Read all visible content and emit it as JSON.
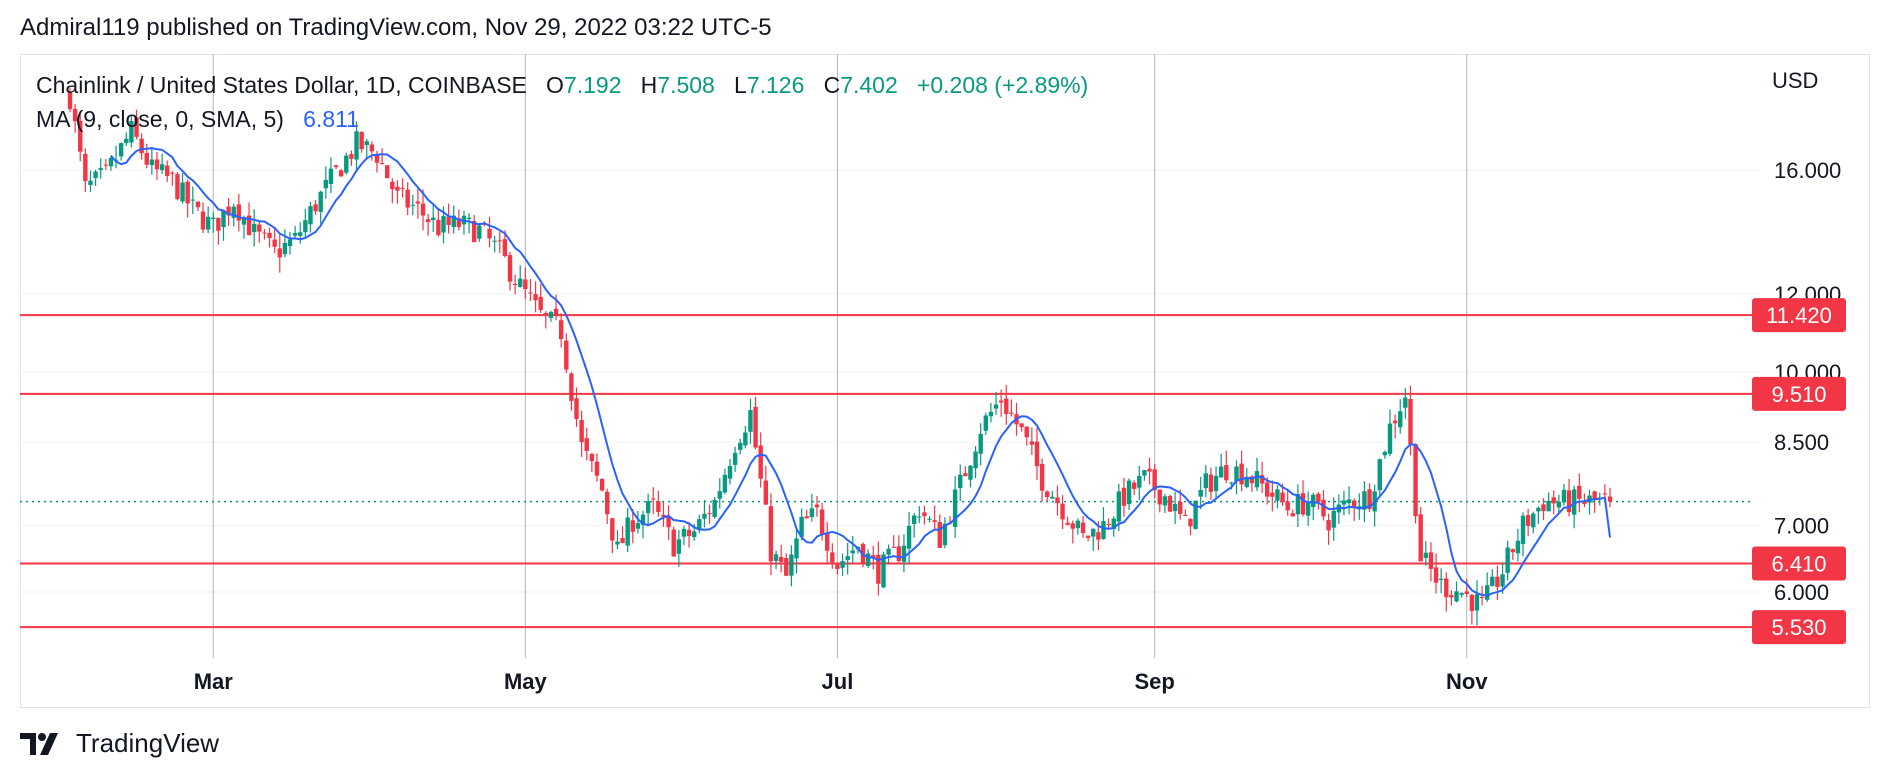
{
  "header": {
    "published": "Admiral119 published on TradingView.com, Nov 29, 2022 03:22 UTC-5"
  },
  "legend": {
    "symbol": "Chainlink / United States Dollar, 1D, COINBASE",
    "o_label": "O",
    "o_value": "7.192",
    "h_label": "H",
    "h_value": "7.508",
    "l_label": "L",
    "l_value": "7.126",
    "c_label": "C",
    "c_value": "7.402",
    "change": "+0.208 (+2.89%)",
    "ma_label": "MA (9, close, 0, SMA, 5)",
    "ma_value": "6.811"
  },
  "axis": {
    "currency": "USD"
  },
  "footer": {
    "brand": "TradingView"
  },
  "colors": {
    "up": "#089981",
    "down": "#f23645",
    "ma": "#2962ff",
    "level": "#f23645",
    "grid": "#f0f3fa",
    "month_line": "#b2b5be"
  },
  "icons": [
    "tradingview-logo-icon"
  ],
  "chart_data": {
    "type": "candlestick",
    "scale": "log",
    "y_ticks": [
      "16.000",
      "12.000",
      "10.000",
      "8.500",
      "7.000",
      "6.000"
    ],
    "y_tick_values": [
      16.0,
      12.0,
      10.0,
      8.5,
      7.0,
      6.0
    ],
    "x_ticks": [
      "Mar",
      "May",
      "Jul",
      "Sep",
      "Nov"
    ],
    "x_tick_days": [
      28,
      89,
      150,
      212,
      273
    ],
    "horizontal_levels": [
      {
        "label": "11.420",
        "value": 11.42
      },
      {
        "label": "9.510",
        "value": 9.51
      },
      {
        "label": "6.410",
        "value": 6.41
      },
      {
        "label": "5.530",
        "value": 5.53
      }
    ],
    "last_close": 7.402,
    "start_date": "2022-02-01",
    "end_date": "2022-11-29",
    "ma_period": 9,
    "ma_last": 6.811,
    "close_path": [
      [
        0,
        19.0
      ],
      [
        3,
        15.3
      ],
      [
        7,
        15.8
      ],
      [
        12,
        17.5
      ],
      [
        16,
        16.0
      ],
      [
        20,
        15.6
      ],
      [
        24,
        14.6
      ],
      [
        28,
        14.0
      ],
      [
        32,
        14.9
      ],
      [
        36,
        13.8
      ],
      [
        40,
        13.2
      ],
      [
        44,
        13.6
      ],
      [
        48,
        14.8
      ],
      [
        52,
        15.9
      ],
      [
        56,
        17.0
      ],
      [
        60,
        16.6
      ],
      [
        64,
        15.0
      ],
      [
        68,
        14.6
      ],
      [
        72,
        14.0
      ],
      [
        76,
        14.1
      ],
      [
        80,
        13.9
      ],
      [
        84,
        13.2
      ],
      [
        88,
        12.2
      ],
      [
        92,
        11.4
      ],
      [
        96,
        11.0
      ],
      [
        100,
        8.4
      ],
      [
        104,
        7.6
      ],
      [
        107,
        6.6
      ],
      [
        110,
        7.1
      ],
      [
        114,
        7.3
      ],
      [
        118,
        6.7
      ],
      [
        122,
        6.9
      ],
      [
        126,
        7.4
      ],
      [
        130,
        8.5
      ],
      [
        133,
        9.1
      ],
      [
        137,
        6.6
      ],
      [
        140,
        6.2
      ],
      [
        143,
        7.0
      ],
      [
        146,
        7.2
      ],
      [
        150,
        6.4
      ],
      [
        154,
        6.7
      ],
      [
        158,
        6.3
      ],
      [
        162,
        6.6
      ],
      [
        166,
        7.3
      ],
      [
        170,
        6.8
      ],
      [
        174,
        7.7
      ],
      [
        178,
        8.8
      ],
      [
        182,
        9.4
      ],
      [
        186,
        8.7
      ],
      [
        190,
        7.8
      ],
      [
        194,
        7.3
      ],
      [
        198,
        6.8
      ],
      [
        202,
        7.0
      ],
      [
        206,
        7.5
      ],
      [
        210,
        7.8
      ],
      [
        214,
        7.5
      ],
      [
        218,
        7.0
      ],
      [
        222,
        7.7
      ],
      [
        226,
        8.0
      ],
      [
        230,
        7.9
      ],
      [
        234,
        7.6
      ],
      [
        238,
        7.3
      ],
      [
        242,
        7.4
      ],
      [
        246,
        7.1
      ],
      [
        250,
        7.4
      ],
      [
        254,
        7.5
      ],
      [
        258,
        8.8
      ],
      [
        261,
        9.5
      ],
      [
        264,
        6.5
      ],
      [
        268,
        6.1
      ],
      [
        272,
        6.0
      ],
      [
        276,
        5.8
      ],
      [
        280,
        6.3
      ],
      [
        284,
        7.0
      ],
      [
        288,
        7.4
      ]
    ]
  }
}
